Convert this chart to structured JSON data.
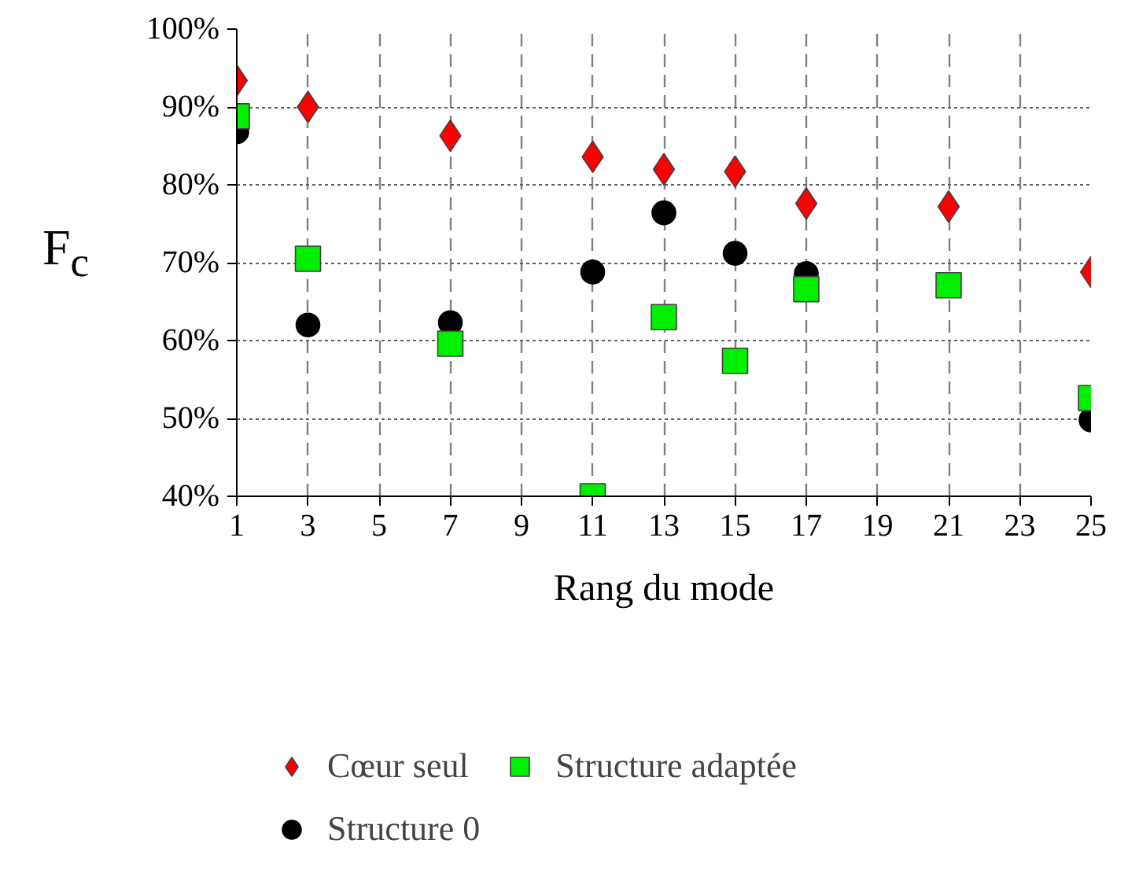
{
  "chart_data": {
    "type": "scatter",
    "xlabel": "Rang du mode",
    "ylabel": "F$_{c}$",
    "x": [
      1,
      3,
      7,
      11,
      13,
      15,
      17,
      21,
      25
    ],
    "series": [
      {
        "name": "Cœur seul",
        "color": "#ff0000",
        "marker": "diamond",
        "values": [
          93.4,
          90,
          86.3,
          83.6,
          82,
          81.7,
          77.6,
          77.2,
          68.8
        ]
      },
      {
        "name": "Structure 0",
        "color": "#000000",
        "marker": "circle",
        "values": [
          86.8,
          62,
          62.3,
          68.8,
          76.4,
          71.2,
          68.6,
          null,
          49.8
        ]
      },
      {
        "name": "Structure adaptée",
        "color": "#00ee00",
        "marker": "square",
        "values": [
          88.8,
          70.5,
          59.6,
          40,
          63,
          57.4,
          66.6,
          67.1,
          52.6
        ]
      }
    ],
    "xlim": [
      1,
      25
    ],
    "xticks": [
      1,
      3,
      5,
      7,
      9,
      11,
      13,
      15,
      17,
      19,
      21,
      23,
      25
    ],
    "ylim": [
      40,
      100
    ],
    "yticks": [
      {
        "value": 40,
        "label": "40%"
      },
      {
        "value": 50,
        "label": "50%"
      },
      {
        "value": 60,
        "label": "60%"
      },
      {
        "value": 70,
        "label": "70%"
      },
      {
        "value": 80,
        "label": "80%"
      },
      {
        "value": 90,
        "label": "90%"
      },
      {
        "value": 100,
        "label": "100%"
      }
    ],
    "grid": true,
    "legend": "bottom"
  }
}
